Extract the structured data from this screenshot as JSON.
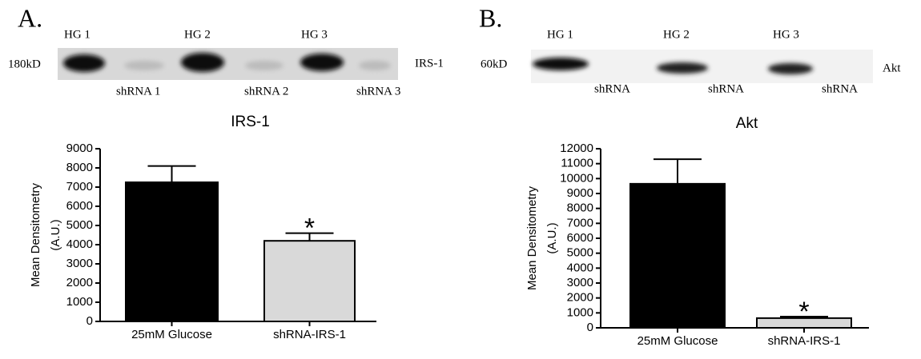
{
  "blots": [
    {
      "panel": "A.",
      "marker": "180kD",
      "protein": "IRS-1",
      "lanes": [
        "HG 1",
        "HG 2",
        "HG 3"
      ],
      "knockdowns": [
        "shRNA 1",
        "shRNA 2",
        "shRNA 3"
      ]
    },
    {
      "panel": "B.",
      "marker": "60kD",
      "protein": "Akt",
      "lanes": [
        "HG 1",
        "HG 2",
        "HG 3"
      ],
      "knockdowns": [
        "shRNA",
        "shRNA",
        "shRNA"
      ]
    }
  ],
  "chart_data": [
    {
      "type": "bar",
      "title": "IRS-1",
      "ylabel": [
        "Mean Densitometry",
        "(A.U.)"
      ],
      "categories": [
        "25mM Glucose",
        "shRNA-IRS-1"
      ],
      "values": [
        7250,
        4200
      ],
      "errors": [
        850,
        400
      ],
      "colors": [
        "#000000",
        "#d9d9d9"
      ],
      "annotation": "*",
      "ylim": [
        0,
        9000
      ],
      "yticks": [
        0,
        1000,
        2000,
        3000,
        4000,
        5000,
        6000,
        7000,
        8000,
        9000
      ]
    },
    {
      "type": "bar",
      "title": "Akt",
      "ylabel": [
        "Mean Densitometry",
        "(A.U.)"
      ],
      "categories": [
        "25mM Glucose",
        "shRNA-IRS-1"
      ],
      "values": [
        9650,
        650
      ],
      "errors": [
        1650,
        100
      ],
      "colors": [
        "#000000",
        "#d9d9d9"
      ],
      "annotation": "*",
      "ylim": [
        0,
        12000
      ],
      "yticks": [
        0,
        1000,
        2000,
        3000,
        4000,
        5000,
        6000,
        7000,
        8000,
        9000,
        10000,
        11000,
        12000
      ]
    }
  ]
}
